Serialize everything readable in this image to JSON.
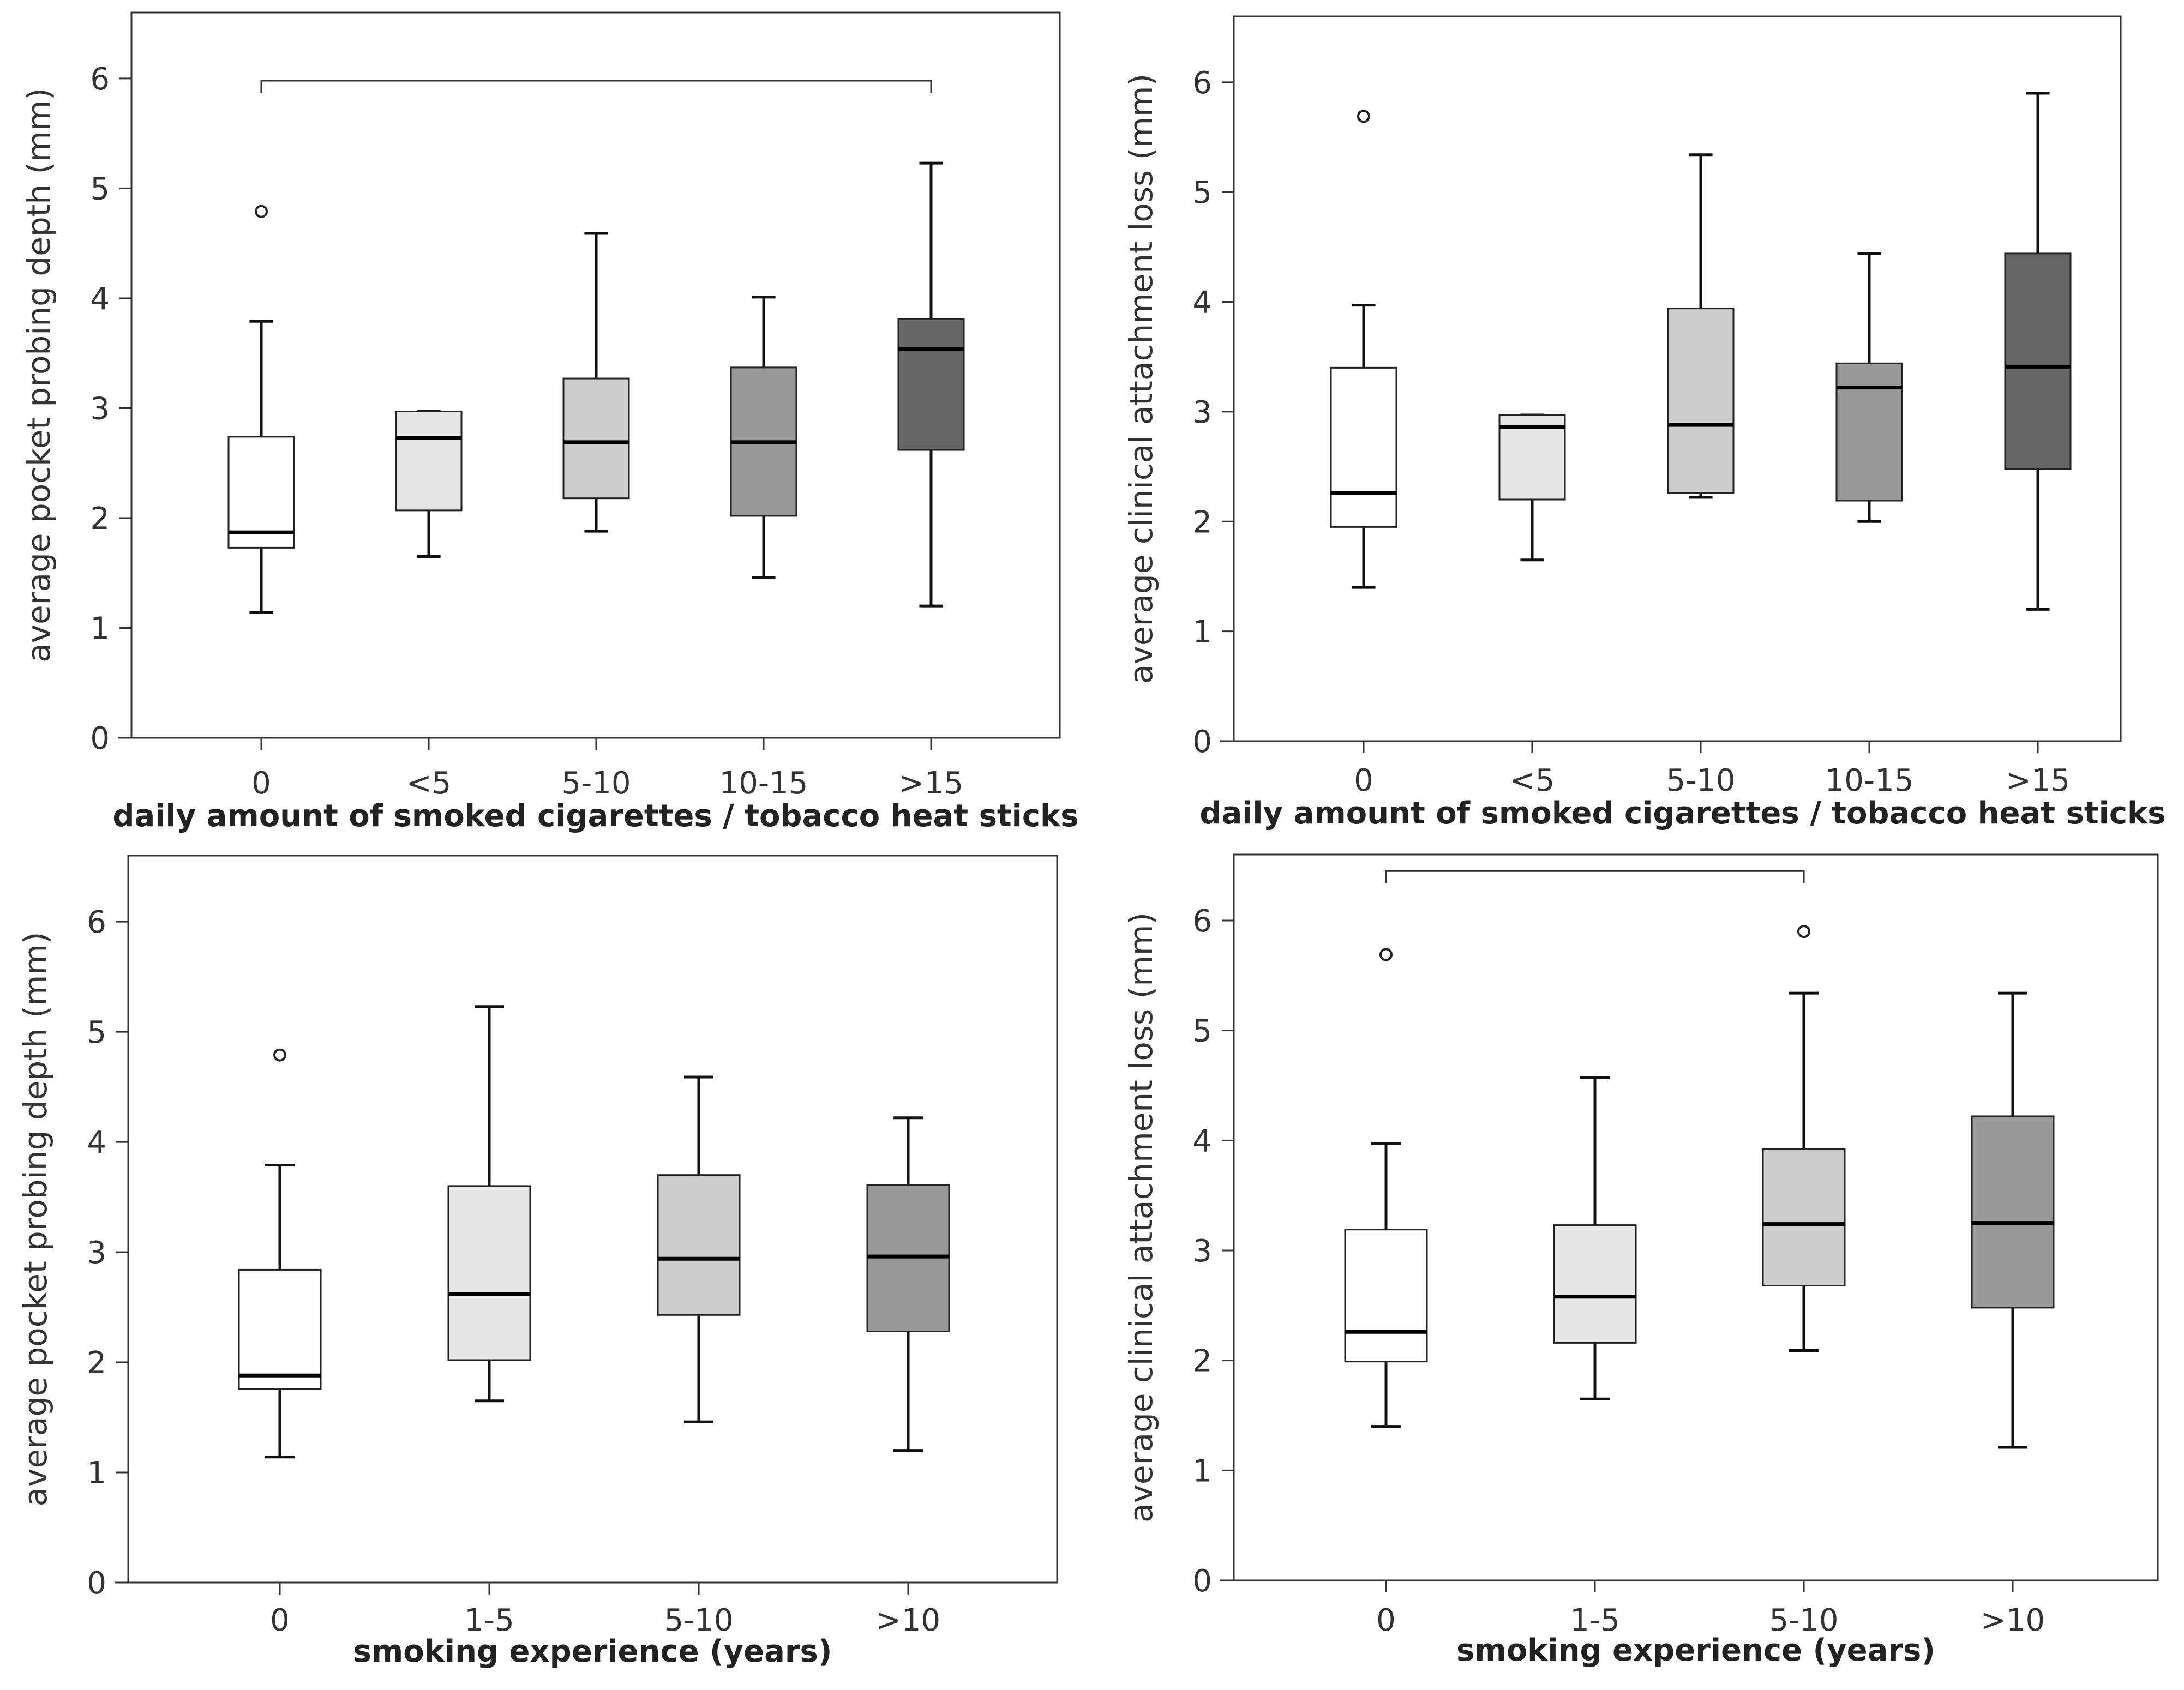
{
  "chart_data": [
    {
      "id": "p1",
      "type": "box",
      "ylabel": "average pocket probing depth (mm)",
      "xlabel": "daily amount of smoked cigarettes / tobacco heat sticks",
      "ylim": [
        0,
        6.6
      ],
      "yticks": [
        0,
        1,
        2,
        3,
        4,
        5,
        6
      ],
      "categories": [
        "0",
        "<5",
        "5-10",
        "10-15",
        ">15"
      ],
      "fills": [
        "#ffffff",
        "#e6e6e6",
        "#cccccc",
        "#999999",
        "#666666"
      ],
      "boxes": [
        {
          "min": 1.14,
          "q1": 1.73,
          "median": 1.87,
          "q3": 2.74,
          "max": 3.79,
          "outliers": [
            4.79
          ]
        },
        {
          "min": 1.65,
          "q1": 2.07,
          "median": 2.73,
          "q3": 2.97,
          "max": 2.97,
          "outliers": []
        },
        {
          "min": 1.88,
          "q1": 2.18,
          "median": 2.69,
          "q3": 3.27,
          "max": 4.59,
          "outliers": []
        },
        {
          "min": 1.46,
          "q1": 2.02,
          "median": 2.69,
          "q3": 3.37,
          "max": 4.01,
          "outliers": []
        },
        {
          "min": 1.2,
          "q1": 2.62,
          "median": 3.54,
          "q3": 3.81,
          "max": 5.23,
          "outliers": []
        }
      ],
      "significance": [
        {
          "from": 0,
          "to": 4,
          "y": 5.98
        }
      ]
    },
    {
      "id": "p2",
      "type": "box",
      "ylabel": "average clinical attachment loss (mm)",
      "xlabel": "daily amount of smoked cigarettes / tobacco heat sticks",
      "ylim": [
        0,
        6.6
      ],
      "yticks": [
        0,
        1,
        2,
        3,
        4,
        5,
        6
      ],
      "categories": [
        "0",
        "<5",
        "5-10",
        "10-15",
        ">15"
      ],
      "fills": [
        "#ffffff",
        "#e6e6e6",
        "#cccccc",
        "#999999",
        "#666666"
      ],
      "boxes": [
        {
          "min": 1.4,
          "q1": 1.95,
          "median": 2.26,
          "q3": 3.4,
          "max": 3.97,
          "outliers": [
            5.69
          ]
        },
        {
          "min": 1.65,
          "q1": 2.2,
          "median": 2.86,
          "q3": 2.97,
          "max": 2.97,
          "outliers": []
        },
        {
          "min": 2.22,
          "q1": 2.26,
          "median": 2.88,
          "q3": 3.94,
          "max": 5.34,
          "outliers": []
        },
        {
          "min": 2.0,
          "q1": 2.19,
          "median": 3.22,
          "q3": 3.44,
          "max": 4.44,
          "outliers": []
        },
        {
          "min": 1.2,
          "q1": 2.48,
          "median": 3.41,
          "q3": 4.44,
          "max": 5.9,
          "outliers": []
        }
      ],
      "significance": []
    },
    {
      "id": "p3",
      "type": "box",
      "ylabel": "average pocket probing depth (mm)",
      "xlabel": "smoking experience (years)",
      "ylim": [
        0,
        6.6
      ],
      "yticks": [
        0,
        1,
        2,
        3,
        4,
        5,
        6
      ],
      "categories": [
        "0",
        "1-5",
        "5-10",
        ">10"
      ],
      "fills": [
        "#ffffff",
        "#e6e6e6",
        "#cccccc",
        "#999999"
      ],
      "boxes": [
        {
          "min": 1.14,
          "q1": 1.76,
          "median": 1.88,
          "q3": 2.84,
          "max": 3.79,
          "outliers": [
            4.79
          ]
        },
        {
          "min": 1.65,
          "q1": 2.02,
          "median": 2.62,
          "q3": 3.6,
          "max": 5.23,
          "outliers": []
        },
        {
          "min": 1.46,
          "q1": 2.43,
          "median": 2.94,
          "q3": 3.7,
          "max": 4.59,
          "outliers": []
        },
        {
          "min": 1.2,
          "q1": 2.28,
          "median": 2.96,
          "q3": 3.61,
          "max": 4.22,
          "outliers": []
        }
      ],
      "significance": []
    },
    {
      "id": "p4",
      "type": "box",
      "ylabel": "average clinical attachment loss (mm)",
      "xlabel": "smoking experience (years)",
      "ylim": [
        0,
        6.6
      ],
      "yticks": [
        0,
        1,
        2,
        3,
        4,
        5,
        6
      ],
      "categories": [
        "0",
        "1-5",
        "5-10",
        ">10"
      ],
      "fills": [
        "#ffffff",
        "#e6e6e6",
        "#cccccc",
        "#999999"
      ],
      "boxes": [
        {
          "min": 1.4,
          "q1": 1.99,
          "median": 2.26,
          "q3": 3.19,
          "max": 3.97,
          "outliers": [
            5.69
          ]
        },
        {
          "min": 1.65,
          "q1": 2.16,
          "median": 2.58,
          "q3": 3.23,
          "max": 4.57,
          "outliers": []
        },
        {
          "min": 2.09,
          "q1": 2.68,
          "median": 3.24,
          "q3": 3.92,
          "max": 5.34,
          "outliers": [
            5.9
          ]
        },
        {
          "min": 1.21,
          "q1": 2.48,
          "median": 3.25,
          "q3": 4.22,
          "max": 5.34,
          "outliers": []
        }
      ],
      "significance": [
        {
          "from": 0,
          "to": 2,
          "y": 6.45
        }
      ]
    }
  ]
}
